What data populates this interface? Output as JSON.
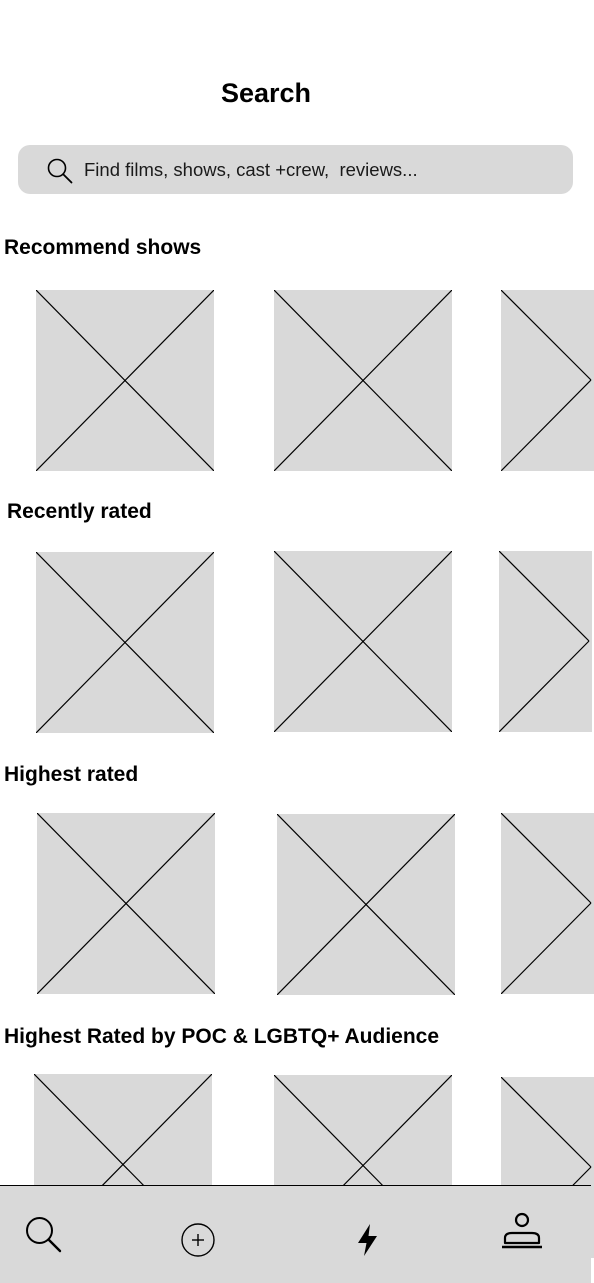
{
  "header": {
    "title": "Search"
  },
  "search": {
    "placeholder": "Find films, shows, cast +crew,  reviews..."
  },
  "sections": [
    {
      "title": "Recommend shows"
    },
    {
      "title": "Recently rated"
    },
    {
      "title": "Highest rated"
    },
    {
      "title": "Highest Rated by POC & LGBTQ+ Audience"
    }
  ],
  "nav": {
    "items": [
      {
        "icon": "search-icon"
      },
      {
        "icon": "plus-circle-icon"
      },
      {
        "icon": "lightning-icon"
      },
      {
        "icon": "profile-icon"
      }
    ]
  },
  "colors": {
    "placeholder_fill": "#d9d9d9",
    "nav_background": "#d9d9d9",
    "text": "#000000"
  }
}
